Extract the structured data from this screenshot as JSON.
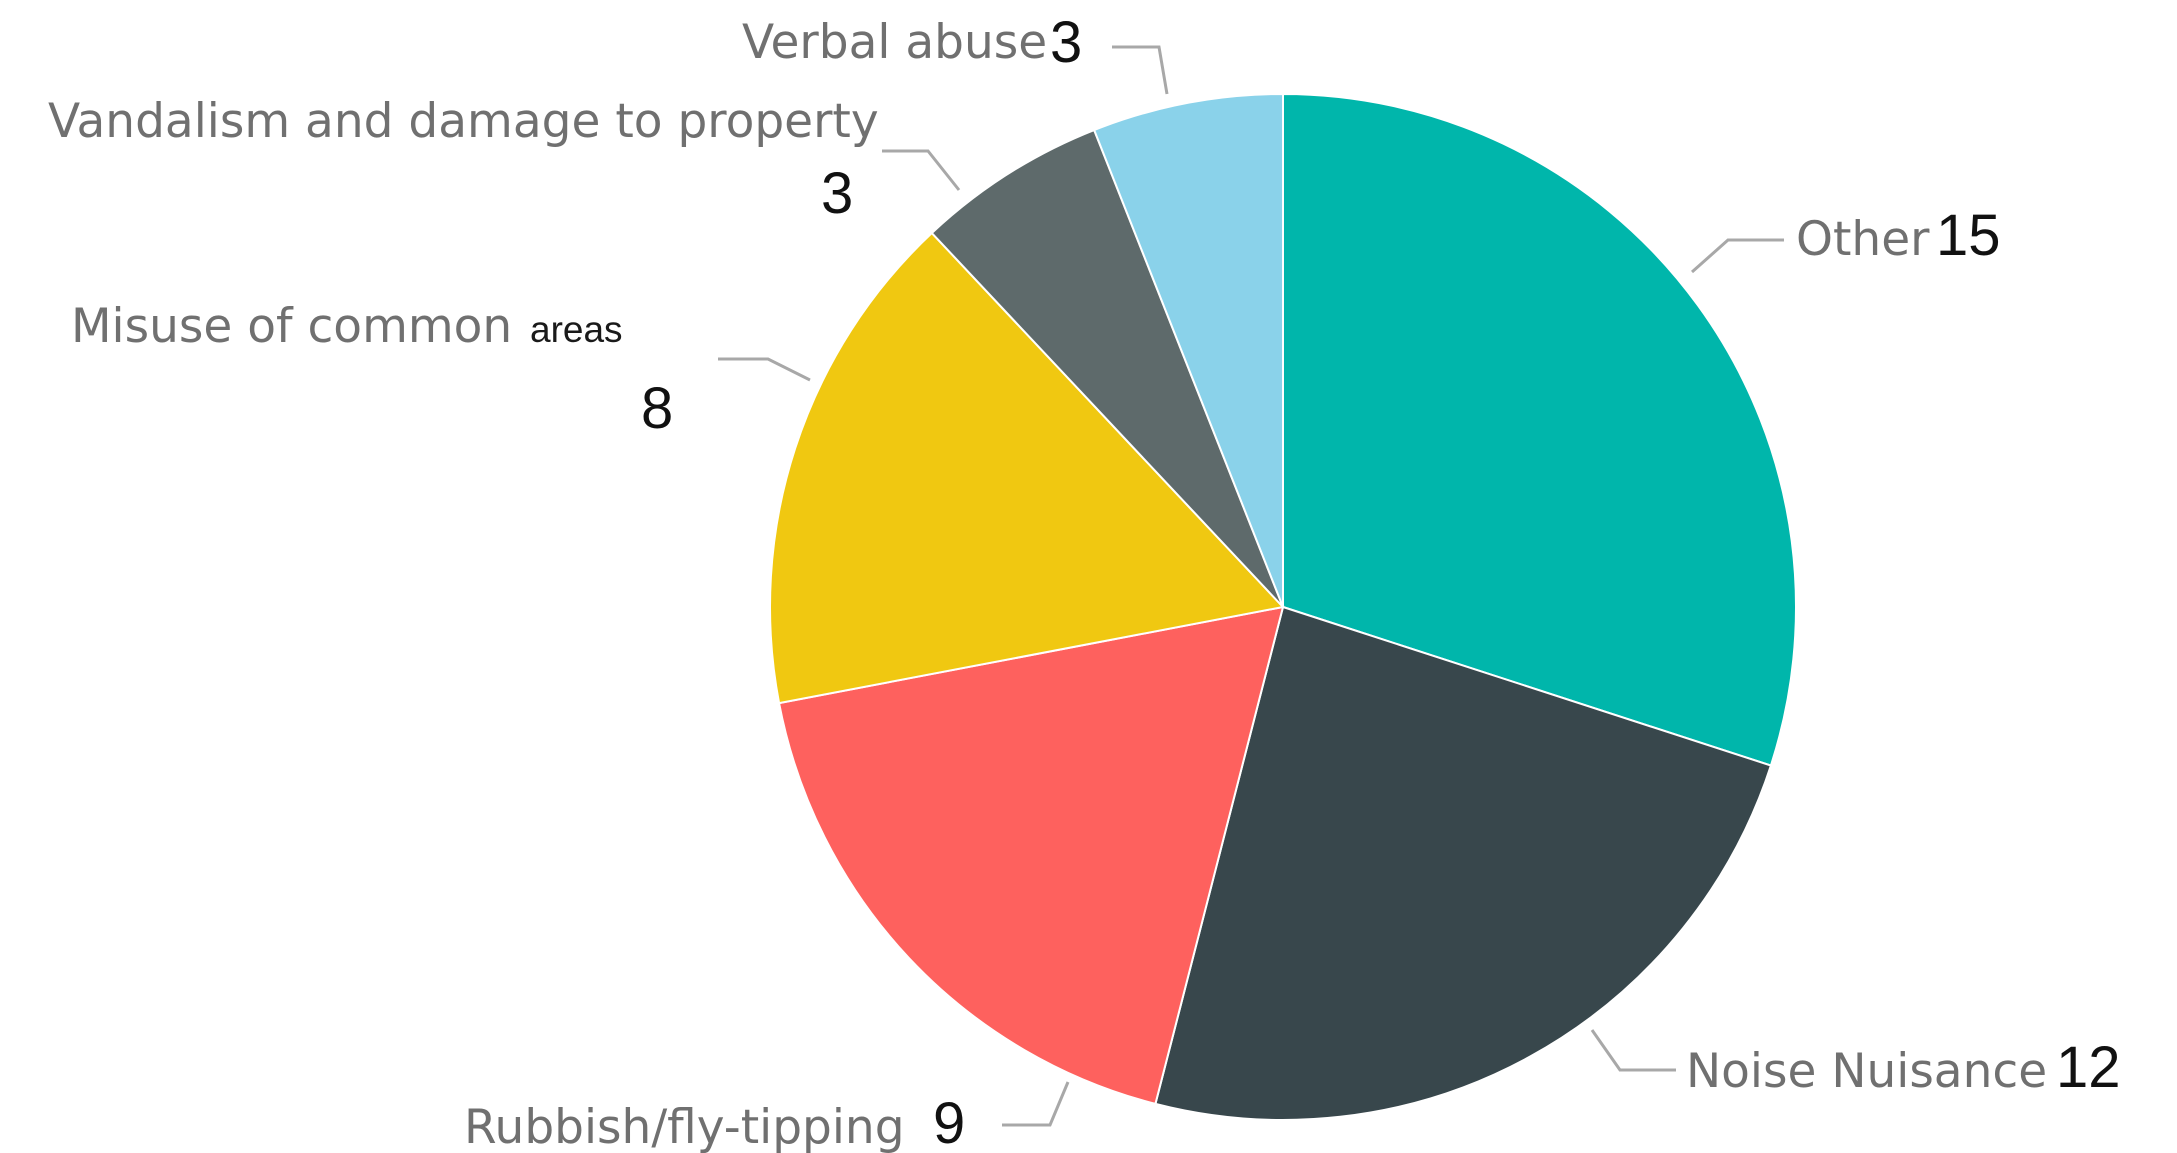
{
  "chart_data": {
    "type": "pie",
    "title": "",
    "slices": [
      {
        "label": "Other",
        "value": 15,
        "color": "#00b6ab"
      },
      {
        "label": "Noise Nuisance",
        "value": 12,
        "color": "#38474c"
      },
      {
        "label": "Rubbish/fly-tipping",
        "value": 9,
        "color": "#fe615e"
      },
      {
        "label": "Misuse of common",
        "label_tail": "areas",
        "value": 8,
        "color": "#f0c811"
      },
      {
        "label": "Vandalism and damage to property",
        "value": 3,
        "color": "#5e6a6b"
      },
      {
        "label": "Verbal abuse",
        "value": 3,
        "color": "#8ad2ea"
      }
    ],
    "start_angle": "12 o'clock",
    "direction": "clockwise",
    "legend": "none",
    "data_labels": "outside with leader lines"
  }
}
